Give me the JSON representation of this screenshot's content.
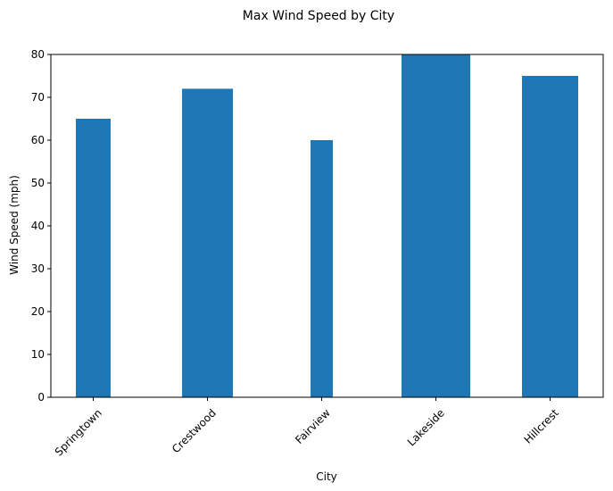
{
  "chart_data": {
    "type": "bar",
    "title": "Max Wind Speed by City",
    "xlabel": "City",
    "ylabel": "Wind Speed (mph)",
    "categories": [
      "Springtown",
      "Crestwood",
      "Fairview",
      "Lakeside",
      "Hillcrest"
    ],
    "values": [
      65,
      72,
      60,
      80,
      75
    ],
    "ylim": [
      0,
      80
    ],
    "yticks": [
      "0",
      "10",
      "20",
      "30",
      "40",
      "50",
      "60",
      "70",
      "80"
    ],
    "grid": false,
    "legend": "none",
    "bar_color": "#1f77b4"
  }
}
